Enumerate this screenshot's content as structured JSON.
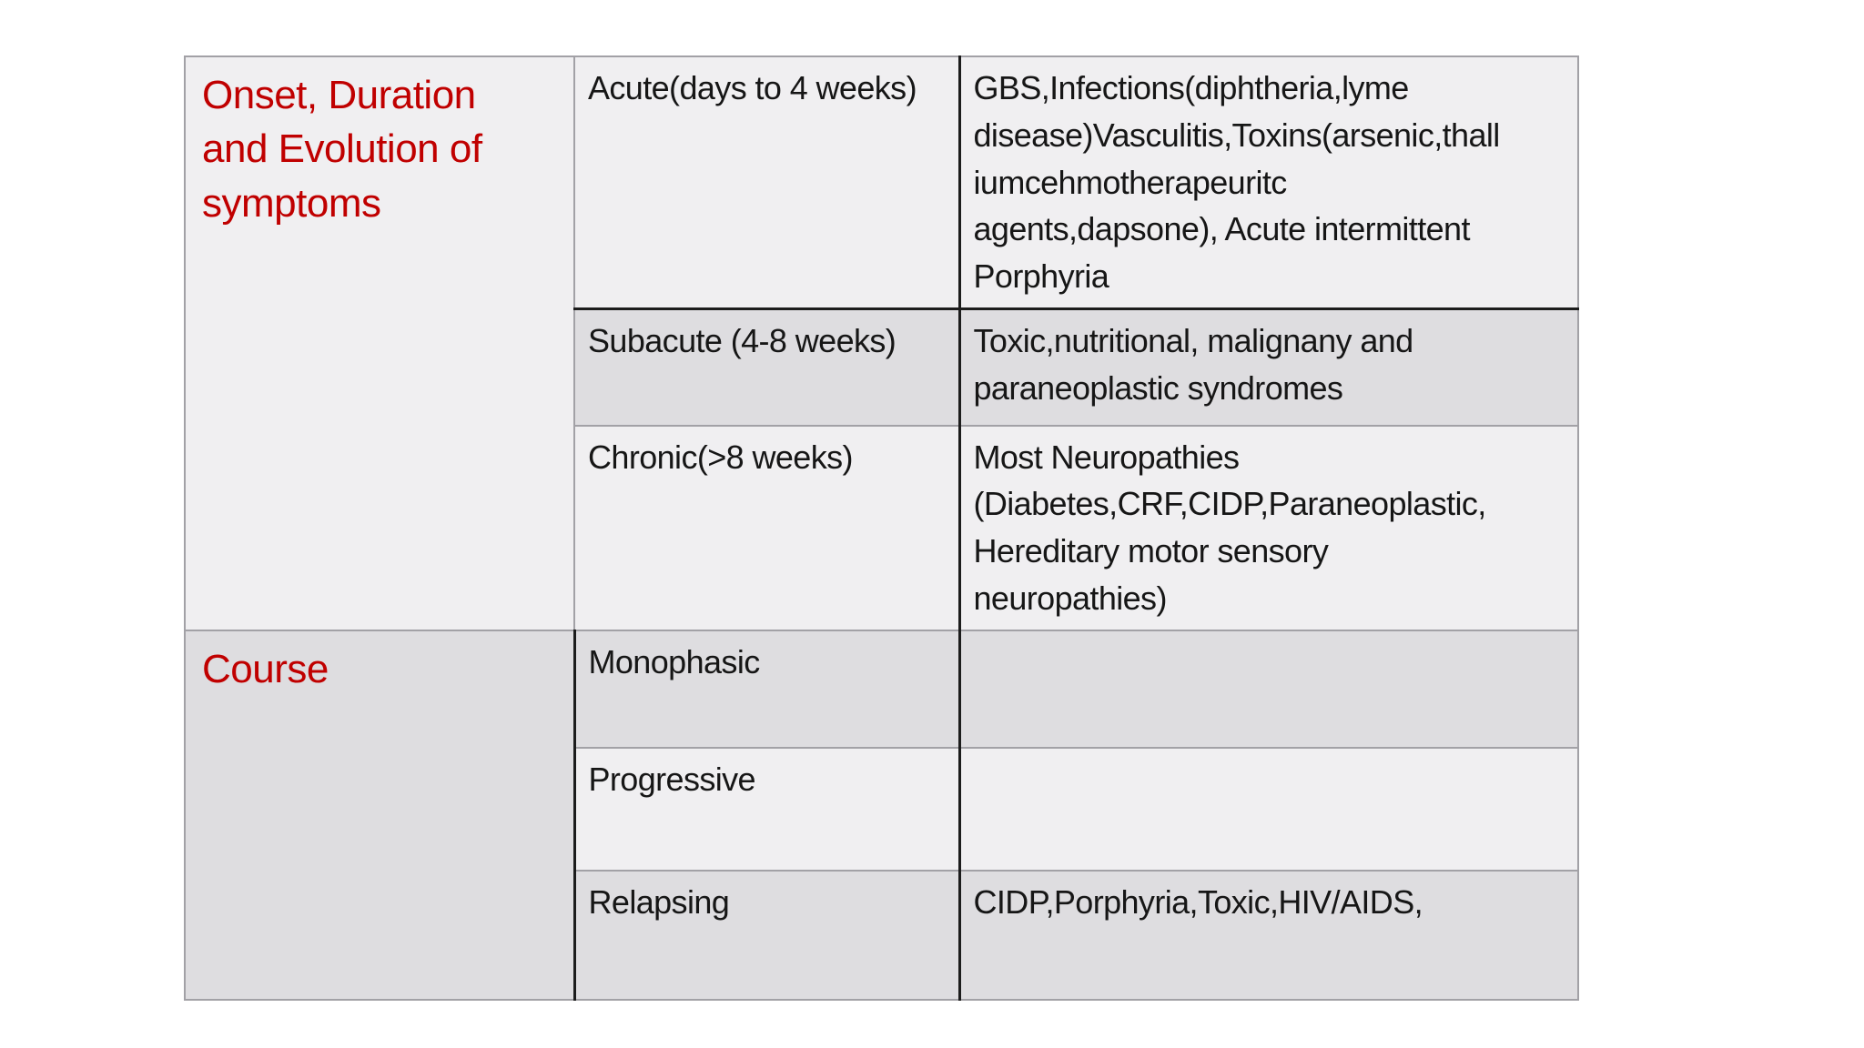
{
  "slide": {
    "kind": "classification-table",
    "accent_color": "#c00000",
    "row_shade_light": "#f0eff1",
    "row_shade_dark": "#dedde0"
  },
  "table": {
    "sections": [
      {
        "category": "Onset, Duration\nand Evolution of\nsymptoms",
        "rows": [
          {
            "label": "Acute(days to 4 weeks)",
            "detail": "GBS,Infections(diphtheria,lyme\ndisease)Vasculitis,Toxins(arsenic,thall\niumcehmotherapeuritc\nagents,dapsone), Acute intermittent\nPorphyria"
          },
          {
            "label": "Subacute (4-8 weeks)",
            "detail": "Toxic,nutritional, malignany and\nparaneoplastic syndromes"
          },
          {
            "label": "Chronic(>8 weeks)",
            "detail": "Most Neuropathies\n(Diabetes,CRF,CIDP,Paraneoplastic,\nHereditary motor sensory\nneuropathies)"
          }
        ]
      },
      {
        "category": "Course",
        "rows": [
          {
            "label": "Monophasic",
            "detail": ""
          },
          {
            "label": "Progressive",
            "detail": ""
          },
          {
            "label": "Relapsing",
            "detail": "CIDP,Porphyria,Toxic,HIV/AIDS,"
          }
        ]
      }
    ]
  }
}
